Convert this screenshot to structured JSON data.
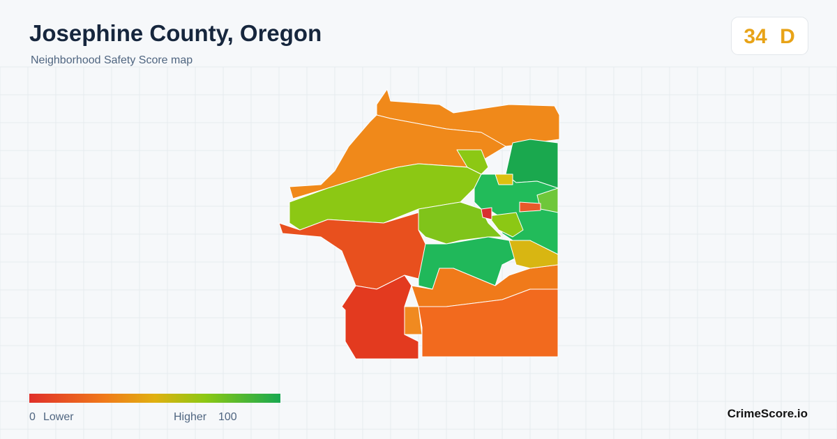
{
  "header": {
    "title": "Josephine County, Oregon",
    "subtitle": "Neighborhood Safety Score map"
  },
  "score": {
    "value": 34,
    "grade": "D"
  },
  "legend": {
    "min": 0,
    "min_label": "Lower",
    "max_label": "Higher",
    "max": 100
  },
  "brand": "CrimeScore.io"
}
